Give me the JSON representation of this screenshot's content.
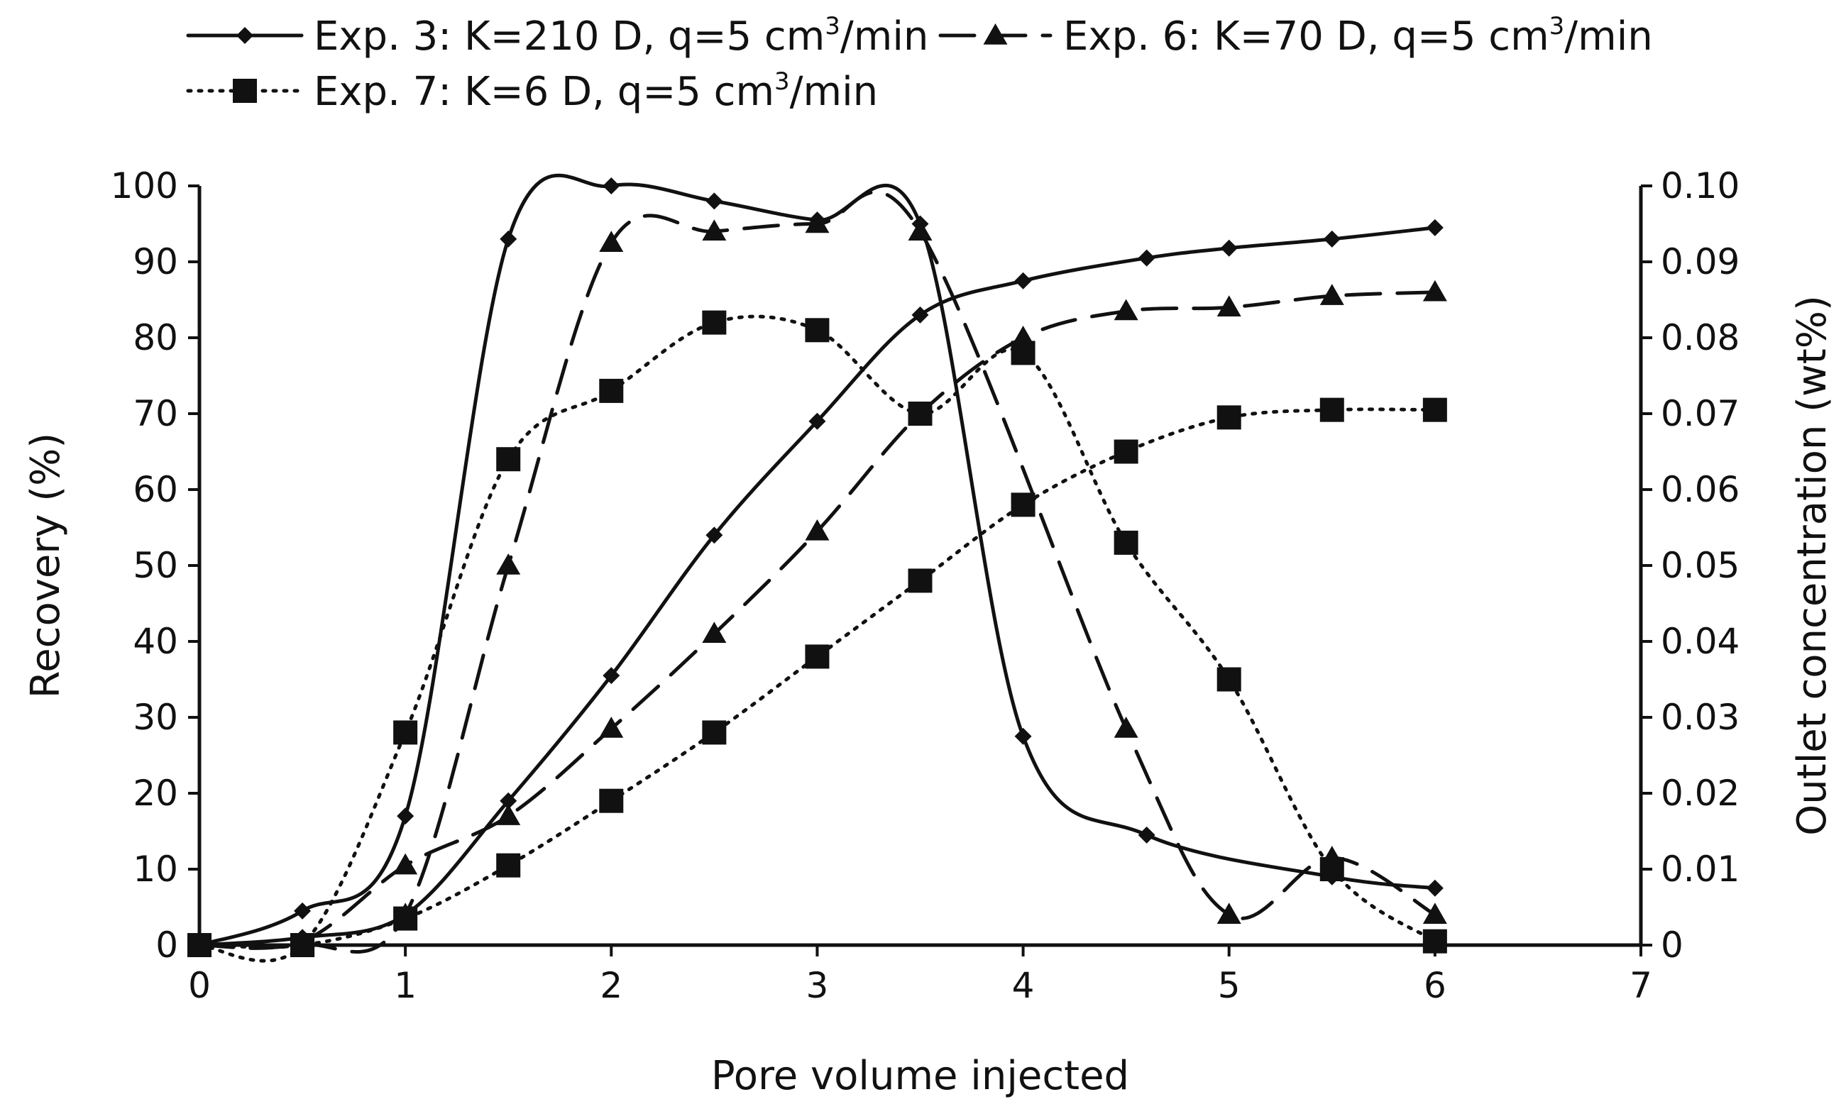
{
  "chart_data": {
    "type": "line",
    "x_axis": {
      "label": "Pore volume injected",
      "range": [
        0,
        7
      ],
      "ticks": [
        "0",
        "1",
        "2",
        "3",
        "4",
        "5",
        "6",
        "7"
      ]
    },
    "y_left": {
      "label": "Recovery (%)",
      "range": [
        0,
        100
      ],
      "ticks": [
        "0",
        "10",
        "20",
        "30",
        "40",
        "50",
        "60",
        "70",
        "80",
        "90",
        "100"
      ]
    },
    "y_right": {
      "label": "Outlet concentration (wt%)",
      "range": [
        0,
        0.1
      ],
      "ticks": [
        "0",
        "0.01",
        "0.02",
        "0.03",
        "0.04",
        "0.05",
        "0.06",
        "0.07",
        "0.08",
        "0.09",
        "0.10"
      ]
    },
    "legend": {
      "placement": "top",
      "entries": [
        {
          "series": "exp3",
          "parts": [
            "Exp. 3: K=210 D, q=5 cm",
            "3",
            "/min"
          ]
        },
        {
          "series": "exp6",
          "parts": [
            "Exp. 6: K=70 D, q=5 cm",
            "3",
            "/min"
          ]
        },
        {
          "series": "exp7",
          "parts": [
            "Exp. 7: K=6 D, q=5 cm",
            "3",
            "/min"
          ]
        }
      ]
    },
    "series": [
      {
        "id": "exp3",
        "name": "Exp. 3: K=210 D, q=5 cm3/min",
        "marker": "diamond",
        "line_style": "solid",
        "color": "#111111",
        "concentration": {
          "x": [
            0,
            0.5,
            1,
            1.5,
            2,
            2.5,
            3,
            3.5,
            4,
            4.6,
            5.5,
            6
          ],
          "y": [
            0,
            4.5,
            17,
            93,
            100,
            98,
            95.5,
            95,
            27.5,
            14.5,
            9,
            7.5
          ]
        },
        "recovery": {
          "x": [
            0,
            0.5,
            1,
            1.5,
            2,
            2.5,
            3,
            3.5,
            4,
            4.6,
            5,
            5.5,
            6
          ],
          "y": [
            0,
            1,
            4,
            19,
            35.5,
            54,
            69,
            83,
            87.5,
            90.5,
            91.8,
            93,
            94.5
          ]
        }
      },
      {
        "id": "exp6",
        "name": "Exp. 6: K=70 D, q=5 cm3/min",
        "marker": "triangle",
        "line_style": "dashed",
        "color": "#111111",
        "concentration": {
          "x": [
            0,
            0.5,
            1,
            1.5,
            2,
            2.5,
            3,
            3.5,
            4.5,
            5,
            5.5,
            6
          ],
          "y": [
            0,
            0,
            4,
            50,
            92.5,
            94,
            95,
            94,
            28.5,
            4,
            11.5,
            4
          ]
        },
        "recovery": {
          "x": [
            0,
            0.5,
            1,
            1.5,
            2,
            2.5,
            3,
            3.5,
            4,
            4.5,
            5,
            5.5,
            6
          ],
          "y": [
            0,
            0.5,
            10.5,
            17,
            28.5,
            41,
            54.5,
            70,
            80,
            83.5,
            84,
            85.5,
            86
          ]
        }
      },
      {
        "id": "exp7",
        "name": "Exp. 7: K=6 D, q=5 cm3/min",
        "marker": "square",
        "line_style": "dotted",
        "color": "#111111",
        "concentration": {
          "x": [
            0,
            0.5,
            1,
            1.5,
            2,
            2.5,
            3,
            3.5,
            4,
            4.5,
            5,
            5.5,
            6
          ],
          "y": [
            0,
            0,
            28,
            64,
            73,
            82,
            81,
            70,
            78,
            53,
            35,
            10,
            0.5
          ]
        },
        "recovery": {
          "x": [
            0,
            0.5,
            1,
            1.5,
            2,
            2.5,
            3,
            3.5,
            4,
            4.5,
            5,
            5.5,
            6
          ],
          "y": [
            0,
            0,
            3.5,
            10.5,
            19,
            28,
            38,
            48,
            58,
            65,
            69.5,
            70.5,
            70.5
          ]
        }
      }
    ]
  }
}
